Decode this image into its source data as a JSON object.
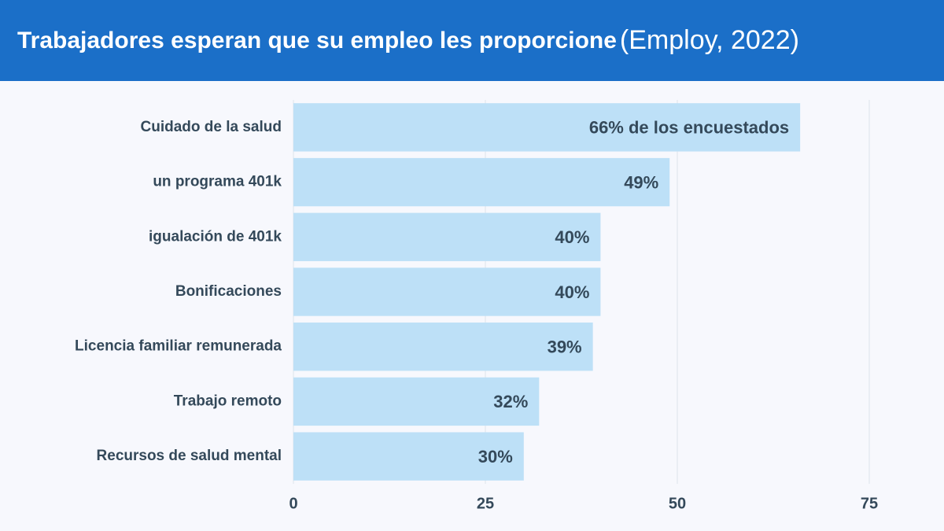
{
  "chart_data": {
    "type": "bar",
    "orientation": "horizontal",
    "title": "Trabajadores esperan que su empleo les proporcione",
    "source": "(Employ, 2022)",
    "categories": [
      "Cuidado de la salud",
      "un programa 401k",
      "igualación de 401k",
      "Bonificaciones",
      "Licencia familiar remunerada",
      "Trabajo remoto",
      "Recursos de salud mental"
    ],
    "values": [
      66,
      49,
      40,
      40,
      39,
      32,
      30
    ],
    "value_labels": [
      "66% de los encuestados",
      "49%",
      "40%",
      "40%",
      "39%",
      "32%",
      "30%"
    ],
    "color": "#bde0f7",
    "xlim": [
      0,
      75
    ],
    "xticks": [
      0,
      25,
      50,
      75
    ],
    "grid": true
  }
}
